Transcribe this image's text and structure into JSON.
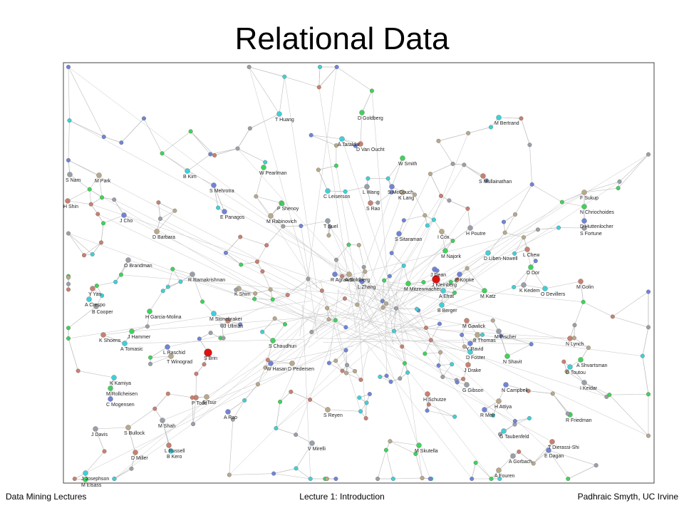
{
  "title": "Relational Data",
  "graph": {
    "nodes": [
      "T Huang",
      "D Goldberg",
      "J Cho",
      "M Park",
      "S Nam",
      "H Shin",
      "B Kim",
      "W Pearlman",
      "S Mehrotra",
      "D Barbara",
      "O Brandman",
      "S Mullainathan",
      "M Bertrand",
      "N Chriochoides",
      "D Huttenlocher",
      "F Sukup",
      "S Fortune",
      "L Chew",
      "D Liben-Nowell",
      "D Dor",
      "P Kopke",
      "J Kleinberg",
      "K Kedem",
      "M Golin",
      "O Devillers",
      "M Katz",
      "R Agrawal",
      "K Shim",
      "R Ramakrishnan",
      "Y Yan",
      "A Crespo",
      "H Garcia-Molina",
      "L Raschid",
      "T Winograd",
      "S Brin",
      "P Todd",
      "K Kamiya",
      "M Rollcheisen",
      "C Mogensen",
      "S Bullock",
      "J Davis",
      "D Miller",
      "J Josephson",
      "M Elsass",
      "A Rao",
      "S Tsur",
      "M Shah",
      "L Russell",
      "B Kero",
      "R Friedman",
      "N Campbell",
      "H Attiya",
      "I Keidar",
      "N Lynch",
      "D Toutou",
      "A Shvartsman",
      "E Dagan",
      "A Fouren",
      "A Gorbach",
      "T Dierassi-Shi",
      "G Taubenfeld",
      "M Skutella",
      "R Meir",
      "S Reyen",
      "V Mirelli",
      "H Schutze",
      "B Berger",
      "M Najork",
      "S Sitaraman",
      "I Cox",
      "H Poutre",
      "D Van Oucht",
      "A Taraldar",
      "W Smith",
      "S McCouch",
      "K Lang",
      "L Wang",
      "S Rao",
      "C Leiserson",
      "P Shenoy",
      "E Panagos",
      "M Rabinovich",
      "T Suel",
      "J Ullman",
      "M Stonebraker",
      "S Chaudhuri",
      "W Hasan",
      "D Pedersen",
      "B Cooper",
      "K Shoens",
      "A Tomasic",
      "J Hammer",
      "L Zhang",
      "A Goldberg",
      "G Gibson",
      "J Drake",
      "D Foster",
      "N Shavit",
      "Y Ravid",
      "B Thomas",
      "M Fischer",
      "M Gawlick",
      "A Efrat",
      "M Mitzenmacher",
      "J Dean"
    ]
  },
  "footer": {
    "left": "Data Mining Lectures",
    "center": "Lecture 1: Introduction",
    "right": "Padhraic Smyth, UC Irvine"
  }
}
